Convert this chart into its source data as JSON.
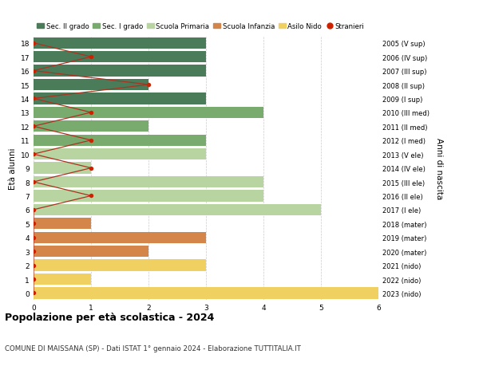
{
  "ages": [
    18,
    17,
    16,
    15,
    14,
    13,
    12,
    11,
    10,
    9,
    8,
    7,
    6,
    5,
    4,
    3,
    2,
    1,
    0
  ],
  "right_labels": [
    "2005 (V sup)",
    "2006 (IV sup)",
    "2007 (III sup)",
    "2008 (II sup)",
    "2009 (I sup)",
    "2010 (III med)",
    "2011 (II med)",
    "2012 (I med)",
    "2013 (V ele)",
    "2014 (IV ele)",
    "2015 (III ele)",
    "2016 (II ele)",
    "2017 (I ele)",
    "2018 (mater)",
    "2019 (mater)",
    "2020 (mater)",
    "2021 (nido)",
    "2022 (nido)",
    "2023 (nido)"
  ],
  "bar_values": [
    3,
    3,
    3,
    2,
    3,
    4,
    2,
    3,
    3,
    1,
    4,
    4,
    5,
    1,
    3,
    2,
    3,
    1,
    6
  ],
  "stranieri_values": [
    0,
    1,
    0,
    2,
    0,
    1,
    0,
    1,
    0,
    1,
    0,
    1,
    0,
    0,
    0,
    0,
    0,
    0,
    0
  ],
  "bar_colors": [
    "#4a7c59",
    "#4a7c59",
    "#4a7c59",
    "#4a7c59",
    "#4a7c59",
    "#7aab6e",
    "#7aab6e",
    "#7aab6e",
    "#b8d4a0",
    "#b8d4a0",
    "#b8d4a0",
    "#b8d4a0",
    "#b8d4a0",
    "#d4854a",
    "#d4854a",
    "#d4854a",
    "#f0d060",
    "#f0d060",
    "#f0d060"
  ],
  "sec2_color": "#4a7c59",
  "sec1_color": "#7aab6e",
  "primaria_color": "#b8d4a0",
  "infanzia_color": "#d4854a",
  "nido_color": "#f0d060",
  "stranieri_color": "#cc2200",
  "stranieri_line_color": "#aa3322",
  "title": "Popolazione per età scolastica - 2024",
  "subtitle": "COMUNE DI MAISSANA (SP) - Dati ISTAT 1° gennaio 2024 - Elaborazione TUTTITALIA.IT",
  "ylabel": "Età alunni",
  "right_ylabel": "Anni di nascita",
  "xlim": [
    0,
    6
  ],
  "legend_labels": [
    "Sec. II grado",
    "Sec. I grado",
    "Scuola Primaria",
    "Scuola Infanzia",
    "Asilo Nido",
    "Stranieri"
  ],
  "bg_color": "#ffffff",
  "grid_color": "#cccccc"
}
